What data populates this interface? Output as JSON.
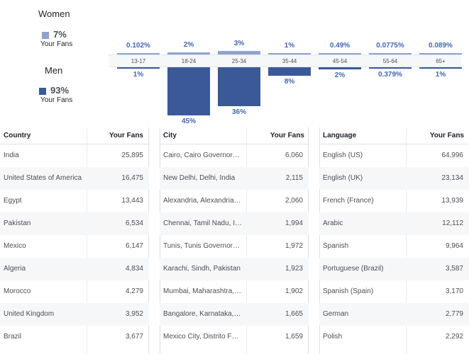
{
  "legend": {
    "women": {
      "title": "Women",
      "percent": "7%",
      "sub": "Your Fans",
      "color": "#8fa3cf"
    },
    "men": {
      "title": "Men",
      "percent": "93%",
      "sub": "Your Fans",
      "color": "#3b5998"
    }
  },
  "chart_data": {
    "type": "bar",
    "categories": [
      "13-17",
      "18-24",
      "25-34",
      "35-44",
      "45-54",
      "55-64",
      "65+"
    ],
    "series": [
      {
        "name": "Women",
        "values": [
          0.102,
          2,
          3,
          1,
          0.49,
          0.0775,
          0.089
        ],
        "labels": [
          "0.102%",
          "2%",
          "3%",
          "1%",
          "0.49%",
          "0.0775%",
          "0.089%"
        ]
      },
      {
        "name": "Men",
        "values": [
          1,
          45,
          36,
          8,
          2,
          0.379,
          1
        ],
        "labels": [
          "1%",
          "45%",
          "36%",
          "8%",
          "2%",
          "0.379%",
          "1%"
        ]
      }
    ],
    "colors": {
      "women": "#8fa3cf",
      "men": "#3b5998"
    }
  },
  "tables": {
    "country": {
      "header": "Country",
      "value_header": "Your Fans",
      "rows": [
        [
          "India",
          "25,895"
        ],
        [
          "United States of America",
          "16,475"
        ],
        [
          "Egypt",
          "13,443"
        ],
        [
          "Pakistan",
          "6,534"
        ],
        [
          "Mexico",
          "6,147"
        ],
        [
          "Algeria",
          "4,834"
        ],
        [
          "Morocco",
          "4,279"
        ],
        [
          "United Kingdom",
          "3,952"
        ],
        [
          "Brazil",
          "3,677"
        ]
      ]
    },
    "city": {
      "header": "City",
      "value_header": "Your Fans",
      "rows": [
        [
          "Cairo, Cairo Governorat…",
          "6,060"
        ],
        [
          "New Delhi, Delhi, India",
          "2,115"
        ],
        [
          "Alexandria, Alexandria …",
          "2,060"
        ],
        [
          "Chennai, Tamil Nadu, I…",
          "1,994"
        ],
        [
          "Tunis, Tunis Governorat…",
          "1,972"
        ],
        [
          "Karachi, Sindh, Pakistan",
          "1,923"
        ],
        [
          "Mumbai, Maharashtra, I…",
          "1,902"
        ],
        [
          "Bangalore, Karnataka, I…",
          "1,665"
        ],
        [
          "Mexico City, Distrito Fe…",
          "1,659"
        ]
      ]
    },
    "language": {
      "header": "Language",
      "value_header": "Your Fans",
      "rows": [
        [
          "English (US)",
          "64,996"
        ],
        [
          "English (UK)",
          "23,134"
        ],
        [
          "French (France)",
          "13,939"
        ],
        [
          "Arabic",
          "12,112"
        ],
        [
          "Spanish",
          "9,964"
        ],
        [
          "Portuguese (Brazil)",
          "3,587"
        ],
        [
          "Spanish (Spain)",
          "3,170"
        ],
        [
          "German",
          "2,779"
        ],
        [
          "Polish",
          "2,292"
        ]
      ]
    }
  }
}
